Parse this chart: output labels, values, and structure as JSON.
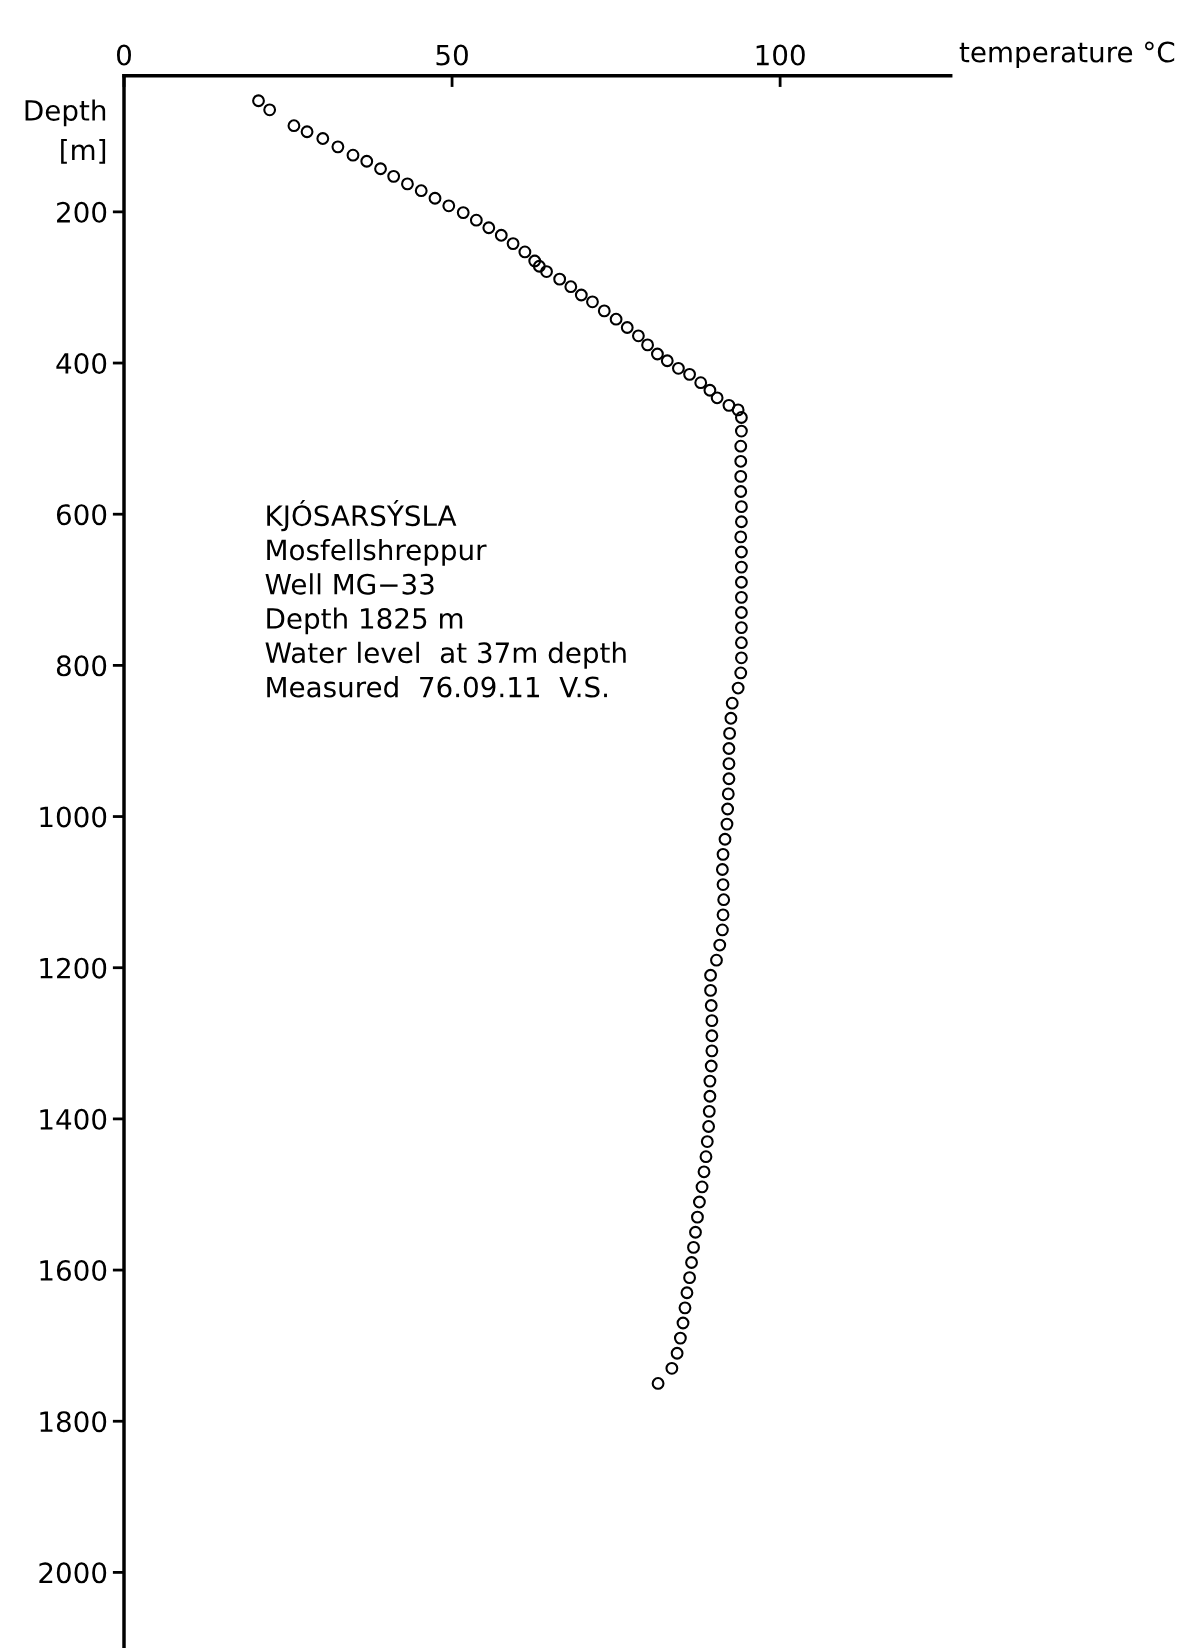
{
  "chart_data": {
    "type": "scatter",
    "xlabel": "temperature °C",
    "ylabel": "Depth\n[m]",
    "xlim": [
      0,
      126
    ],
    "xticks": [
      0,
      50,
      100
    ],
    "ylim": [
      2100,
      20
    ],
    "yticks": [
      200,
      400,
      600,
      800,
      1000,
      1200,
      1400,
      1600,
      1800,
      2000
    ],
    "marker": "circle",
    "grid": false,
    "annotations": [
      "KJÓSARSÝSLA\nMosfellshreppur\nWell MG−33\nDepth 1825 m\nWater level  at 37m depth\nMeasured  76.09.11  V.S."
    ],
    "series": [
      {
        "color": "#000000",
        "x": [
          20.5,
          22.2,
          25.9,
          27.9,
          30.3,
          32.6,
          34.9,
          37.0,
          39.1,
          41.1,
          43.2,
          45.3,
          47.4,
          49.5,
          51.7,
          53.7,
          55.6,
          57.5,
          59.3,
          61.1,
          62.6,
          63.3,
          64.4,
          66.4,
          68.1,
          69.7,
          71.4,
          73.2,
          75.0,
          76.7,
          78.4,
          79.8,
          81.3,
          82.8,
          84.5,
          86.2,
          87.9,
          89.3,
          90.4,
          92.2,
          93.6,
          94.1,
          94.1,
          94.0,
          94.0,
          94.0,
          94.0,
          94.1,
          94.1,
          94.0,
          94.1,
          94.1,
          94.1,
          94.1,
          94.1,
          94.1,
          94.1,
          94.1,
          94.0,
          93.6,
          92.7,
          92.5,
          92.3,
          92.2,
          92.2,
          92.2,
          92.1,
          92.0,
          91.9,
          91.6,
          91.3,
          91.2,
          91.3,
          91.4,
          91.3,
          91.2,
          90.8,
          90.3,
          89.4,
          89.4,
          89.5,
          89.6,
          89.6,
          89.6,
          89.5,
          89.3,
          89.3,
          89.2,
          89.1,
          88.9,
          88.7,
          88.4,
          88.1,
          87.7,
          87.4,
          87.1,
          86.8,
          86.5,
          86.2,
          85.8,
          85.5,
          85.2,
          84.8,
          84.3,
          83.5,
          81.4
        ],
        "values": [
          53,
          65,
          86,
          94,
          103,
          114,
          125,
          133,
          143,
          153,
          163,
          172,
          182,
          192,
          201,
          211,
          221,
          231,
          242,
          253,
          265,
          272,
          279,
          289,
          299,
          310,
          319,
          331,
          342,
          353,
          364,
          376,
          388,
          397,
          407,
          415,
          426,
          436,
          446,
          456,
          462,
          472,
          490,
          510,
          530,
          550,
          570,
          590,
          610,
          630,
          650,
          670,
          690,
          710,
          730,
          750,
          770,
          790,
          810,
          830,
          850,
          870,
          890,
          910,
          930,
          950,
          970,
          990,
          1010,
          1030,
          1050,
          1070,
          1090,
          1110,
          1130,
          1150,
          1170,
          1190,
          1210,
          1230,
          1250,
          1270,
          1290,
          1310,
          1330,
          1350,
          1370,
          1390,
          1410,
          1430,
          1450,
          1470,
          1490,
          1510,
          1530,
          1550,
          1570,
          1590,
          1610,
          1630,
          1650,
          1670,
          1690,
          1710,
          1730,
          1750
        ]
      }
    ]
  }
}
